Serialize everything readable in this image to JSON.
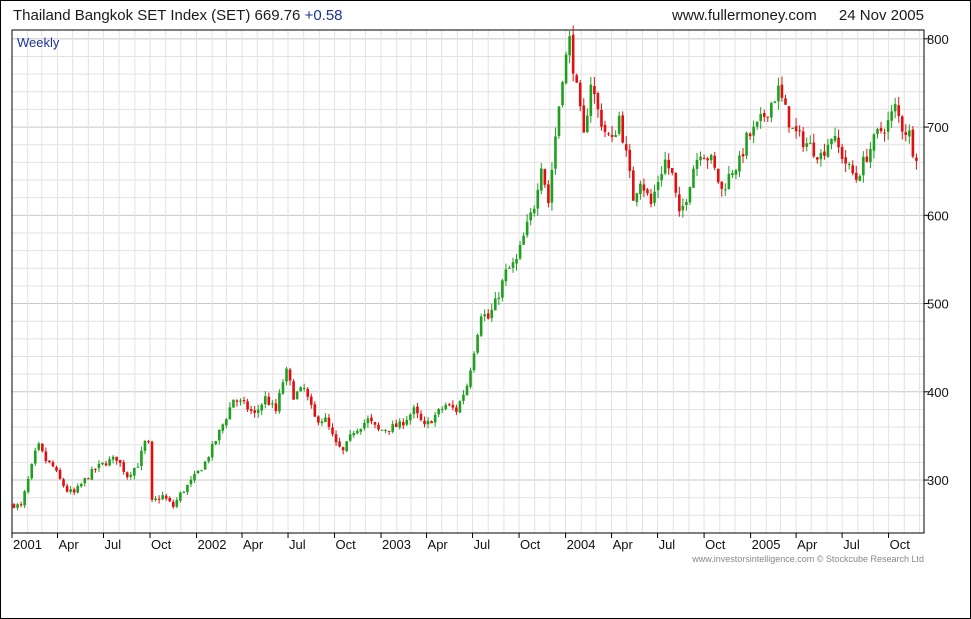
{
  "header": {
    "title": "Thailand Bangkok SET Index (SET) 669.76",
    "change": "+0.58",
    "source": "www.fullermoney.com",
    "date": "24 Nov 2005"
  },
  "footer": {
    "credit": "www.investorsintelligence.com  © Stockcube Research Ltd"
  },
  "colors": {
    "up": "#1ea01e",
    "down": "#e01010",
    "grid": "#e2e2e2",
    "label_blue": "#1a3399"
  },
  "chart_data": {
    "type": "candlestick",
    "title": "Thailand Bangkok SET Index (SET)",
    "period": "Weekly",
    "last": 669.76,
    "change": 0.58,
    "ylim": [
      240,
      810
    ],
    "yticks": [
      300,
      400,
      500,
      600,
      700,
      800
    ],
    "xlim": [
      "2001-01-01",
      "2005-12-10"
    ],
    "xticks": [
      {
        "label": "2001",
        "date": "2001-01-01"
      },
      {
        "label": "Apr",
        "date": "2001-04-01"
      },
      {
        "label": "Jul",
        "date": "2001-07-01"
      },
      {
        "label": "Oct",
        "date": "2001-10-01"
      },
      {
        "label": "2002",
        "date": "2002-01-01"
      },
      {
        "label": "Apr",
        "date": "2002-04-01"
      },
      {
        "label": "Jul",
        "date": "2002-07-01"
      },
      {
        "label": "Oct",
        "date": "2002-10-01"
      },
      {
        "label": "2003",
        "date": "2003-01-01"
      },
      {
        "label": "Apr",
        "date": "2003-04-01"
      },
      {
        "label": "Jul",
        "date": "2003-07-01"
      },
      {
        "label": "Oct",
        "date": "2003-10-01"
      },
      {
        "label": "2004",
        "date": "2004-01-01"
      },
      {
        "label": "Apr",
        "date": "2004-04-01"
      },
      {
        "label": "Jul",
        "date": "2004-07-01"
      },
      {
        "label": "Oct",
        "date": "2004-10-01"
      },
      {
        "label": "2005",
        "date": "2005-01-01"
      },
      {
        "label": "Apr",
        "date": "2005-04-01"
      },
      {
        "label": "Jul",
        "date": "2005-07-01"
      },
      {
        "label": "Oct",
        "date": "2005-10-01"
      }
    ],
    "grid": true,
    "close_path": [
      [
        "2001-01-05",
        272
      ],
      [
        "2001-01-19",
        270
      ],
      [
        "2001-02-02",
        300
      ],
      [
        "2001-02-16",
        330
      ],
      [
        "2001-02-23",
        338
      ],
      [
        "2001-03-09",
        322
      ],
      [
        "2001-03-23",
        315
      ],
      [
        "2001-04-06",
        300
      ],
      [
        "2001-04-20",
        288
      ],
      [
        "2001-05-04",
        285
      ],
      [
        "2001-05-25",
        300
      ],
      [
        "2001-06-15",
        313
      ],
      [
        "2001-07-06",
        320
      ],
      [
        "2001-07-27",
        325
      ],
      [
        "2001-08-17",
        305
      ],
      [
        "2001-09-07",
        318
      ],
      [
        "2001-09-21",
        342
      ],
      [
        "2001-09-28",
        340
      ],
      [
        "2001-10-05",
        275
      ],
      [
        "2001-10-26",
        282
      ],
      [
        "2001-11-16",
        270
      ],
      [
        "2001-11-30",
        284
      ],
      [
        "2001-12-21",
        298
      ],
      [
        "2002-01-18",
        320
      ],
      [
        "2002-02-08",
        345
      ],
      [
        "2002-03-01",
        372
      ],
      [
        "2002-03-15",
        392
      ],
      [
        "2002-04-05",
        385
      ],
      [
        "2002-04-26",
        374
      ],
      [
        "2002-05-17",
        393
      ],
      [
        "2002-06-07",
        378
      ],
      [
        "2002-06-21",
        412
      ],
      [
        "2002-06-28",
        422
      ],
      [
        "2002-07-12",
        396
      ],
      [
        "2002-08-02",
        403
      ],
      [
        "2002-08-23",
        370
      ],
      [
        "2002-09-13",
        368
      ],
      [
        "2002-10-04",
        340
      ],
      [
        "2002-10-18",
        332
      ],
      [
        "2002-11-08",
        356
      ],
      [
        "2002-12-06",
        368
      ],
      [
        "2002-12-27",
        356
      ],
      [
        "2003-02-07",
        362
      ],
      [
        "2003-03-07",
        379
      ],
      [
        "2003-03-28",
        360
      ],
      [
        "2003-04-18",
        373
      ],
      [
        "2003-05-09",
        385
      ],
      [
        "2003-05-30",
        379
      ],
      [
        "2003-06-20",
        408
      ],
      [
        "2003-07-04",
        448
      ],
      [
        "2003-07-18",
        490
      ],
      [
        "2003-08-01",
        483
      ],
      [
        "2003-08-15",
        500
      ],
      [
        "2003-09-05",
        535
      ],
      [
        "2003-09-26",
        548
      ],
      [
        "2003-10-10",
        575
      ],
      [
        "2003-10-31",
        612
      ],
      [
        "2003-11-14",
        660
      ],
      [
        "2003-11-28",
        615
      ],
      [
        "2003-12-12",
        690
      ],
      [
        "2003-12-26",
        760
      ],
      [
        "2004-01-09",
        798
      ],
      [
        "2004-01-23",
        742
      ],
      [
        "2004-02-06",
        688
      ],
      [
        "2004-02-20",
        752
      ],
      [
        "2004-03-05",
        718
      ],
      [
        "2004-03-19",
        695
      ],
      [
        "2004-04-02",
        683
      ],
      [
        "2004-04-16",
        712
      ],
      [
        "2004-04-30",
        668
      ],
      [
        "2004-05-14",
        620
      ],
      [
        "2004-05-28",
        642
      ],
      [
        "2004-06-18",
        612
      ],
      [
        "2004-07-02",
        640
      ],
      [
        "2004-07-16",
        662
      ],
      [
        "2004-07-30",
        645
      ],
      [
        "2004-08-13",
        598
      ],
      [
        "2004-08-27",
        622
      ],
      [
        "2004-09-10",
        655
      ],
      [
        "2004-09-24",
        674
      ],
      [
        "2004-10-15",
        662
      ],
      [
        "2004-11-05",
        628
      ],
      [
        "2004-11-26",
        652
      ],
      [
        "2004-12-10",
        660
      ],
      [
        "2004-12-24",
        686
      ],
      [
        "2005-01-14",
        700
      ],
      [
        "2005-02-04",
        720
      ],
      [
        "2005-02-25",
        742
      ],
      [
        "2005-03-11",
        718
      ],
      [
        "2005-03-25",
        696
      ],
      [
        "2005-04-08",
        688
      ],
      [
        "2005-04-29",
        678
      ],
      [
        "2005-05-20",
        668
      ],
      [
        "2005-06-10",
        690
      ],
      [
        "2005-07-01",
        668
      ],
      [
        "2005-07-15",
        652
      ],
      [
        "2005-07-29",
        642
      ],
      [
        "2005-08-19",
        668
      ],
      [
        "2005-09-09",
        692
      ],
      [
        "2005-09-30",
        705
      ],
      [
        "2005-10-14",
        722
      ],
      [
        "2005-10-28",
        700
      ],
      [
        "2005-11-11",
        692
      ],
      [
        "2005-11-18",
        675
      ],
      [
        "2005-11-25",
        669.76
      ]
    ]
  }
}
